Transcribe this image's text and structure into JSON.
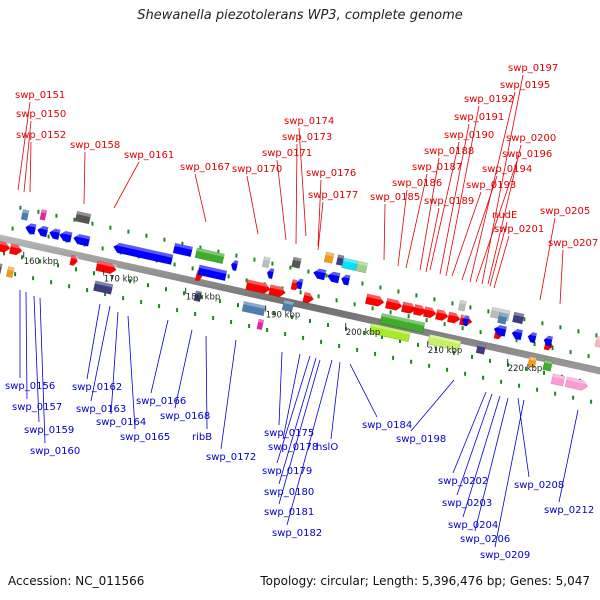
{
  "title": "Shewanella piezotolerans WP3, complete genome",
  "footer": {
    "accession": "Accession: NC_011566",
    "summary": "Topology: circular; Length: 5,396,476 bp; Genes: 5,047"
  },
  "colors": {
    "top_label": "#e00000",
    "bottom_label": "#0000d0",
    "backbone": "#7a7a7a",
    "tick": "#1a8a1a"
  },
  "scale_labels": [
    "160 kbp",
    "170 kbp",
    "180 kbp",
    "190 kbp",
    "200 kbp",
    "210 kbp",
    "220 kbp"
  ],
  "top_labels": [
    "swp_0151",
    "swp_0150",
    "swp_0152",
    "swp_0158",
    "swp_0161",
    "swp_0167",
    "swp_0170",
    "swp_0171",
    "swp_0173",
    "swp_0174",
    "swp_0176",
    "swp_0177",
    "swp_0185",
    "swp_0186",
    "swp_0187",
    "swp_0188",
    "swp_0189",
    "swp_0190",
    "swp_0191",
    "swp_0192",
    "swp_0193",
    "swp_0194",
    "swp_0195",
    "swp_0196",
    "swp_0197",
    "swp_0200",
    "nudE",
    "swp_0201",
    "swp_0205",
    "swp_0207"
  ],
  "bottom_labels": [
    "swp_0156",
    "swp_0157",
    "swp_0159",
    "swp_0160",
    "swp_0162",
    "swp_0163",
    "swp_0164",
    "swp_0165",
    "swp_0166",
    "swp_0168",
    "ribB",
    "swp_0172",
    "swp_0175",
    "swp_0178",
    "swp_0179",
    "swp_0180",
    "swp_0181",
    "swp_0182",
    "hslO",
    "swp_0184",
    "swp_0198",
    "swp_0202",
    "swp_0203",
    "swp_0204",
    "swp_0206",
    "swp_0208",
    "swp_0209",
    "swp_0212"
  ]
}
